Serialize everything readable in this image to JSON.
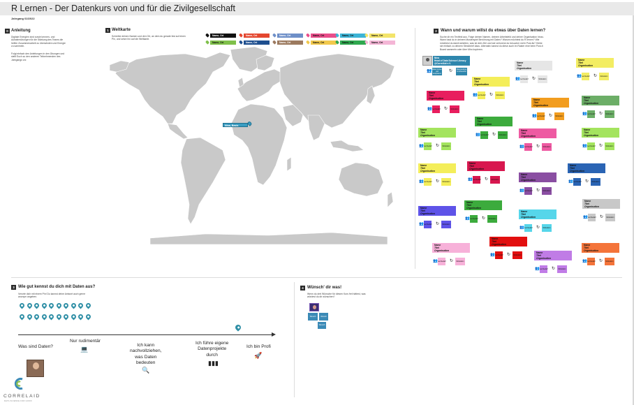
{
  "header": {
    "title": "R Lernen - Der Datenkurs von und für die Zivilgesellschaft",
    "subtitle": "Jahrgang 02/2022"
  },
  "section0": {
    "num": "0",
    "title": "Anleitung",
    "text1": "Digitale Energien sind sowie kennen- und Aufwärmübungen für die Stärkung des Teams die helfen Zusammenarbeit zu überwinden und Energie zu sammeln.",
    "text2": "Folgt einfach den Anleitungen in den Übungen und stellt Euch so den anderen Teilnehmenden des Jahrgangs vor."
  },
  "section1": {
    "num": "1",
    "title": "Weltkarte",
    "text": "Schreibe deinen Namen und den Ort, an dem du gerade bist auf einen Pin, und setze ihn auf die Weltkarte.",
    "legend": [
      {
        "label": "Name, Ort",
        "color": "#111111",
        "text_color": "#ffffff"
      },
      {
        "label": "Name, Ort",
        "color": "#e4472f",
        "text_color": "#ffffff"
      },
      {
        "label": "Name, Ort",
        "color": "#6e8fc8",
        "text_color": "#ffffff"
      },
      {
        "label": "Name, Ort",
        "color": "#e94d8a",
        "text_color": "#111111"
      },
      {
        "label": "Name, Ort",
        "color": "#3cb4d6",
        "text_color": "#111111"
      },
      {
        "label": "Name, Ort",
        "color": "#f3e46a",
        "text_color": "#111111"
      },
      {
        "label": "Name, Ort",
        "color": "#7fc04a",
        "text_color": "#111111"
      },
      {
        "label": "Name, Ort",
        "color": "#1f4f8f",
        "text_color": "#ffffff"
      },
      {
        "label": "Name, Ort",
        "color": "#9c7a5f",
        "text_color": "#ffffff"
      },
      {
        "label": "Name, Ort",
        "color": "#f2c94c",
        "text_color": "#111111"
      },
      {
        "label": "Name, Ort",
        "color": "#2fa84f",
        "text_color": "#111111"
      },
      {
        "label": "Name, Ort",
        "color": "#f4b6d6",
        "text_color": "#111111"
      }
    ],
    "map_pin_label": "Nina, Basis",
    "map_color": "#c9c9c9"
  },
  "section2": {
    "num": "2",
    "title": "Wann und warum willst du etwas über Daten lernen?",
    "text": "Suche dir ein Textfeld aus. Folge deinen Namen, deinem Arbeitsfeld und deiner Organisation hinzu. Wann hast du in deinem Musterspiel Berührung mit Daten? Warum möchtest du R lernen? Wie möchtest du damit arbeiten, was ist dein Ziel und wie verlorene du besucher mehr Post-its? Klebe sie einfach zu deinem Steckbrief dazu. Alternativ kannst du diese auch im Raster eine beim Post-it Board sammeln oder über Miro kopieren.",
    "kiki": {
      "name": "Nina",
      "role": "Head of Data Science Literacy",
      "org": "@CorrelAid e.V.",
      "note1": "Daten lernen und analysieren",
      "note2": "Datenanalyse im Ehrenamt"
    },
    "card_name": "Name",
    "card_title": "Titel",
    "card_org": "Organisation",
    "note1": "Lernbedarf",
    "note2": "Motivation"
  },
  "section3": {
    "num": "3",
    "title": "Wie gut kennst du dich mit Daten aus?",
    "text": "Verorte dich mit einem Pin! Du kannst deine Antwort auch gerne anonym angeben.",
    "scale": [
      {
        "label": "Was sind Daten?",
        "icon": ""
      },
      {
        "label": "Nur rudimentär",
        "icon": "laptop-icon"
      },
      {
        "label": "Ich kann nachvollziehen, was Daten bedeuten",
        "icon": "magnifier-icon"
      },
      {
        "label": "Ich führe eigene Datenprojekte durch",
        "icon": "bar-chart-icon"
      },
      {
        "label": "Ich bin Profi",
        "icon": "rocket-icon"
      }
    ],
    "pin_color": "#2f8fa6"
  },
  "section4": {
    "num": "4",
    "title": "Wünsch' dir was!",
    "text": "Wenn du drei Wünsche für diesen Kurs frei hättest, was würdest du dir wünschen?",
    "note": "Wunsch"
  },
  "logo": {
    "name": "CORRELAID",
    "tagline": "DATA SCIENCE FOR GOOD"
  }
}
